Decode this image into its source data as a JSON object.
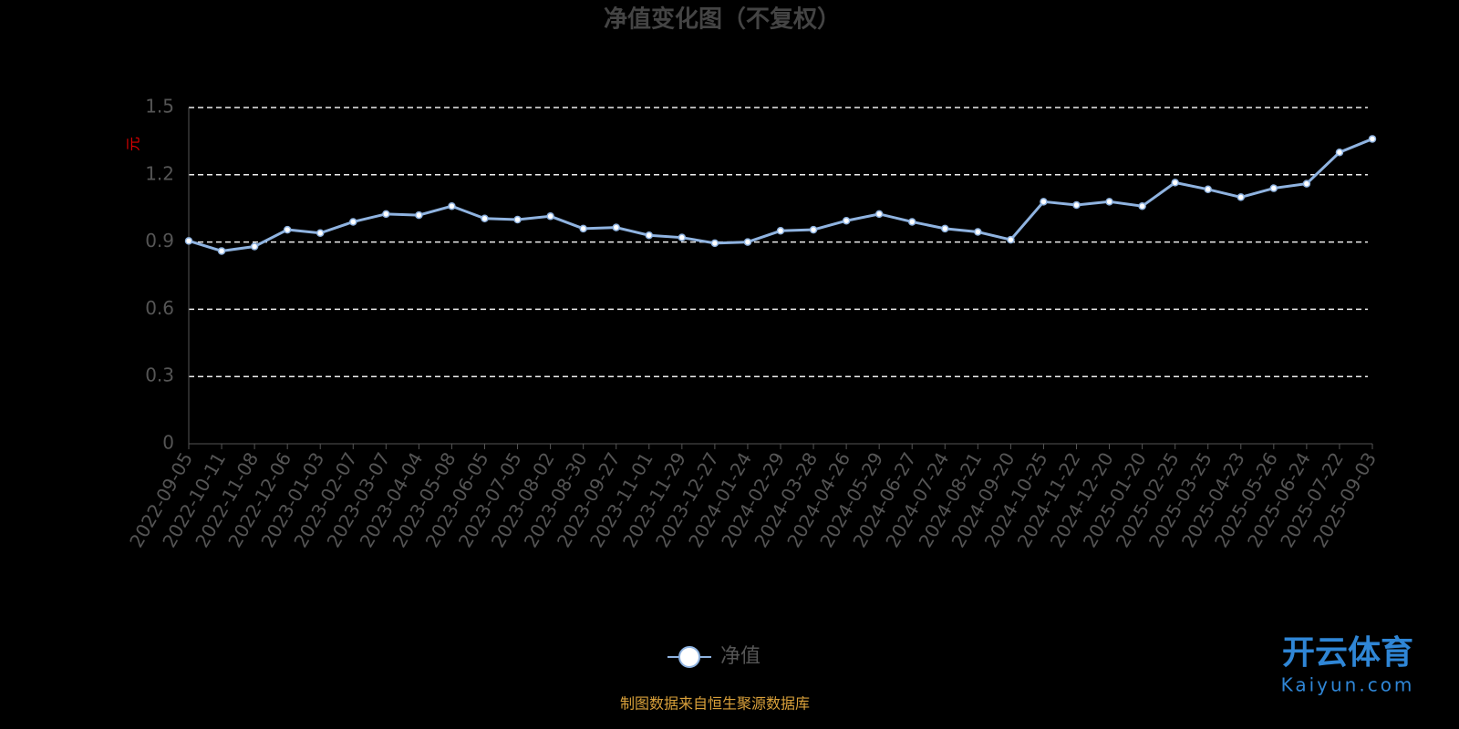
{
  "chart_data": {
    "type": "line",
    "title": "净值变化图（不复权）",
    "y_label": "元",
    "categories": [
      "2022-09-05",
      "2022-10-11",
      "2022-11-08",
      "2022-12-06",
      "2023-01-03",
      "2023-02-07",
      "2023-03-07",
      "2023-04-04",
      "2023-05-08",
      "2023-06-05",
      "2023-07-05",
      "2023-08-02",
      "2023-08-30",
      "2023-09-27",
      "2023-11-01",
      "2023-11-29",
      "2023-12-27",
      "2024-01-24",
      "2024-02-29",
      "2024-03-28",
      "2024-04-26",
      "2024-05-29",
      "2024-06-27",
      "2024-07-24",
      "2024-08-21",
      "2024-09-20",
      "2024-10-25",
      "2024-11-22",
      "2024-12-20",
      "2025-01-20",
      "2025-02-25",
      "2025-03-25",
      "2025-04-23",
      "2025-05-26",
      "2025-06-24",
      "2025-07-22",
      "2025-09-03"
    ],
    "series": [
      {
        "name": "净值",
        "color": "#8fb3e0",
        "values": [
          0.905,
          0.86,
          0.88,
          0.955,
          0.94,
          0.99,
          1.025,
          1.02,
          1.06,
          1.005,
          1.0,
          1.015,
          0.96,
          0.965,
          0.93,
          0.92,
          0.895,
          0.9,
          0.95,
          0.955,
          0.995,
          1.025,
          0.99,
          0.96,
          0.945,
          0.91,
          1.08,
          1.065,
          1.08,
          1.06,
          1.165,
          1.135,
          1.1,
          1.14,
          1.16,
          1.3,
          1.36
        ]
      }
    ],
    "ylim": [
      0,
      1.5
    ],
    "yticks": [
      0,
      0.3,
      0.6,
      0.9,
      1.2,
      1.5
    ],
    "grid": true,
    "source": "制图数据来自恒生聚源数据库",
    "watermark": "开云体育",
    "watermark_url": "Kaiyun.com"
  }
}
